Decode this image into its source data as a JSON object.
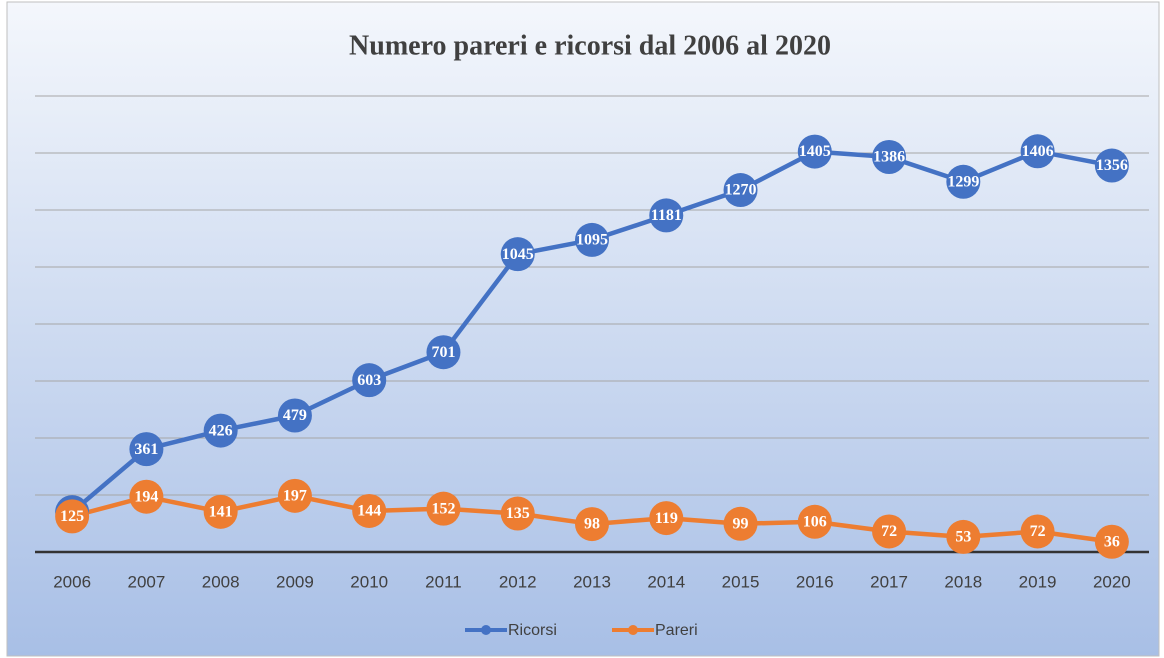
{
  "chart_data": {
    "type": "line",
    "title": "Numero pareri e ricorsi dal 2006 al 2020",
    "categories": [
      "2006",
      "2007",
      "2008",
      "2009",
      "2010",
      "2011",
      "2012",
      "2013",
      "2014",
      "2015",
      "2016",
      "2017",
      "2018",
      "2019",
      "2020"
    ],
    "series": [
      {
        "name": "Ricorsi",
        "color": "#4472c4",
        "values": [
          140,
          361,
          426,
          479,
          603,
          701,
          1045,
          1095,
          1181,
          1270,
          1405,
          1386,
          1299,
          1406,
          1356
        ]
      },
      {
        "name": "Pareri",
        "color": "#ed7d31",
        "values": [
          125,
          194,
          141,
          197,
          144,
          152,
          135,
          98,
          119,
          99,
          106,
          72,
          53,
          72,
          36
        ]
      }
    ],
    "ylim": [
      0,
      1600
    ],
    "yticks": [
      0,
      200,
      400,
      600,
      800,
      1000,
      1200,
      1400,
      1600
    ],
    "grid": true,
    "legend": "bottom"
  }
}
